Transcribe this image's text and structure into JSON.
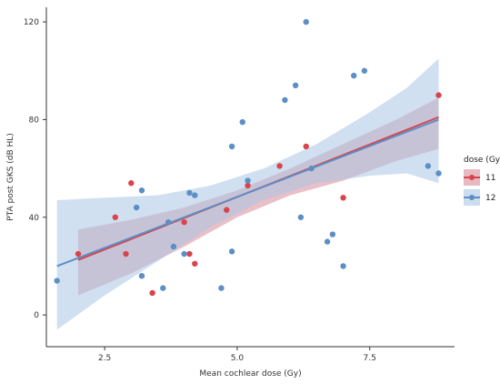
{
  "chart_data": {
    "type": "scatter",
    "title": "",
    "xlabel": "Mean cochlear dose (Gy)",
    "ylabel": "PTA post GKS (dB HL)",
    "xlim": [
      1.4,
      9.1
    ],
    "ylim": [
      -13,
      126
    ],
    "xticks": [
      2.5,
      5.0,
      7.5
    ],
    "xtick_labels": [
      "2.5",
      "5.0",
      "7.5"
    ],
    "yticks": [
      0,
      40,
      80,
      120
    ],
    "ytick_labels": [
      "0",
      "40",
      "80",
      "120"
    ],
    "grid": false,
    "legend": {
      "title": "dose (Gy)",
      "position": "right",
      "entries": [
        "11",
        "12"
      ]
    },
    "series": [
      {
        "name": "11",
        "color": "#d9434b",
        "band_color": "#d98a99",
        "points": [
          [
            2.0,
            25
          ],
          [
            2.7,
            40
          ],
          [
            2.9,
            25
          ],
          [
            3.0,
            54
          ],
          [
            3.4,
            9
          ],
          [
            4.0,
            38
          ],
          [
            4.1,
            25
          ],
          [
            4.2,
            21
          ],
          [
            4.8,
            43
          ],
          [
            5.2,
            53
          ],
          [
            5.8,
            61
          ],
          [
            6.3,
            69
          ],
          [
            7.0,
            48
          ],
          [
            8.8,
            90
          ]
        ],
        "fit": [
          [
            2.0,
            22.5
          ],
          [
            8.8,
            81.0
          ]
        ],
        "ci_upper": [
          [
            2.0,
            35
          ],
          [
            3.0,
            39
          ],
          [
            4.0,
            44
          ],
          [
            5.0,
            51
          ],
          [
            6.0,
            60
          ],
          [
            7.0,
            70
          ],
          [
            8.0,
            80
          ],
          [
            8.8,
            89
          ]
        ],
        "ci_lower": [
          [
            2.0,
            8
          ],
          [
            3.0,
            17
          ],
          [
            4.0,
            28
          ],
          [
            5.0,
            40
          ],
          [
            6.0,
            49
          ],
          [
            7.0,
            55
          ],
          [
            8.0,
            63
          ],
          [
            8.8,
            68
          ]
        ]
      },
      {
        "name": "12",
        "color": "#5b8fc6",
        "band_color": "#a9c6e3",
        "points": [
          [
            1.6,
            14
          ],
          [
            3.1,
            44
          ],
          [
            3.2,
            51
          ],
          [
            3.2,
            16
          ],
          [
            3.6,
            11
          ],
          [
            3.7,
            38
          ],
          [
            3.8,
            28
          ],
          [
            4.0,
            25
          ],
          [
            4.1,
            50
          ],
          [
            4.2,
            49
          ],
          [
            4.7,
            11
          ],
          [
            4.9,
            69
          ],
          [
            4.9,
            26
          ],
          [
            5.1,
            79
          ],
          [
            5.2,
            55
          ],
          [
            5.9,
            88
          ],
          [
            6.1,
            94
          ],
          [
            6.2,
            40
          ],
          [
            6.3,
            120
          ],
          [
            6.4,
            60
          ],
          [
            6.7,
            30
          ],
          [
            6.8,
            33
          ],
          [
            7.0,
            20
          ],
          [
            7.2,
            98
          ],
          [
            7.4,
            100
          ],
          [
            8.6,
            61
          ],
          [
            8.8,
            58
          ]
        ],
        "fit": [
          [
            1.6,
            20.0
          ],
          [
            8.8,
            80.0
          ]
        ],
        "ci_upper": [
          [
            1.6,
            47
          ],
          [
            2.5,
            48
          ],
          [
            3.5,
            49
          ],
          [
            4.5,
            53
          ],
          [
            5.5,
            60
          ],
          [
            6.5,
            70
          ],
          [
            7.5,
            83
          ],
          [
            8.2,
            93
          ],
          [
            8.8,
            105
          ]
        ],
        "ci_lower": [
          [
            1.6,
            -6
          ],
          [
            2.5,
            8
          ],
          [
            3.5,
            22
          ],
          [
            4.5,
            36
          ],
          [
            5.5,
            47
          ],
          [
            6.5,
            54
          ],
          [
            7.5,
            57
          ],
          [
            8.2,
            58
          ],
          [
            8.8,
            54
          ]
        ]
      }
    ]
  }
}
